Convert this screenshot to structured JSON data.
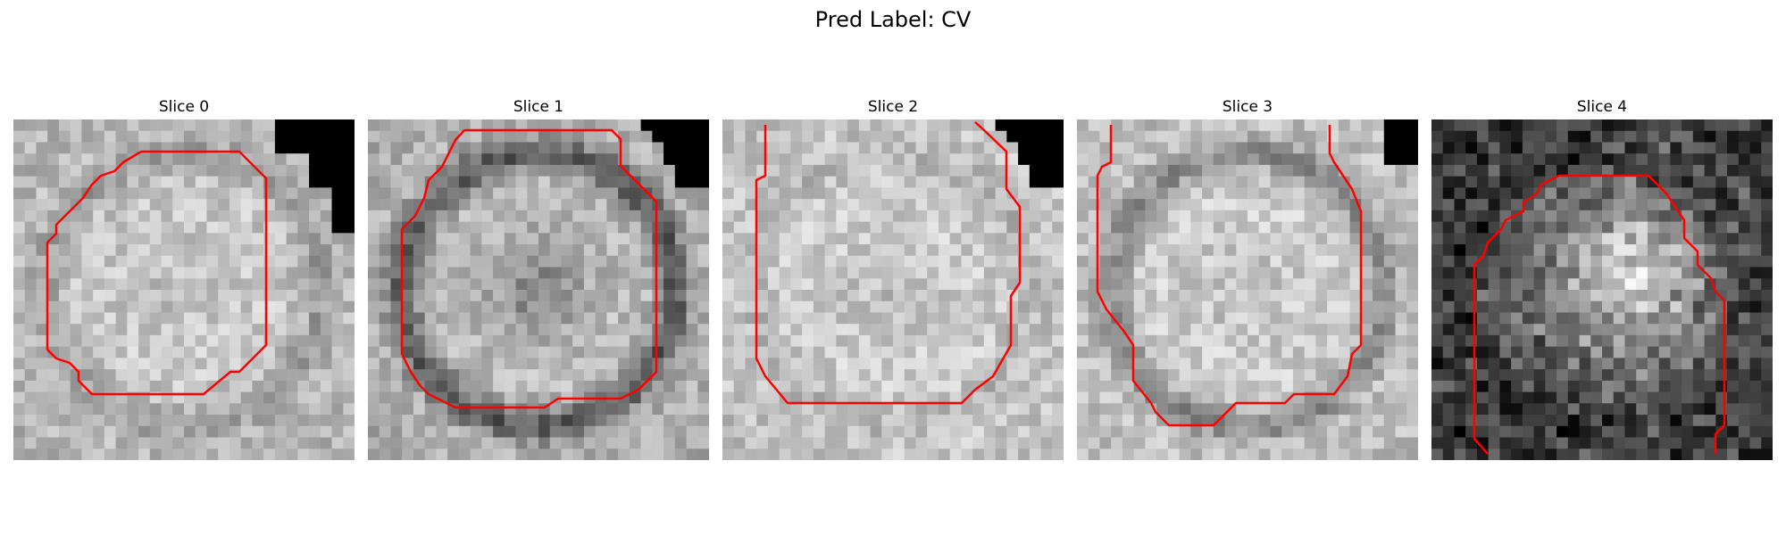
{
  "figure": {
    "title": "Pred Label: CV"
  },
  "slices": [
    {
      "title": "Slice 0",
      "seed": 11,
      "base": 200,
      "vignette": 0.35,
      "dark_ring": 0.2,
      "inner_dark": 0.05,
      "corner": "top-right-stair"
    },
    {
      "title": "Slice 1",
      "seed": 23,
      "base": 190,
      "vignette": 0.3,
      "dark_ring": 0.55,
      "inner_dark": 0.35,
      "corner": "top-right"
    },
    {
      "title": "Slice 2",
      "seed": 37,
      "base": 205,
      "vignette": 0.2,
      "dark_ring": 0.1,
      "inner_dark": 0.1,
      "corner": "top-right"
    },
    {
      "title": "Slice 3",
      "seed": 41,
      "base": 205,
      "vignette": 0.3,
      "dark_ring": 0.35,
      "inner_dark": 0.08,
      "corner": "top-right-small"
    },
    {
      "title": "Slice 4",
      "seed": 59,
      "base": 95,
      "vignette": 0.7,
      "dark_ring": 0.15,
      "inner_dark": 0.0,
      "corner": "none"
    }
  ],
  "style": {
    "contour_color": "#ff0000"
  }
}
